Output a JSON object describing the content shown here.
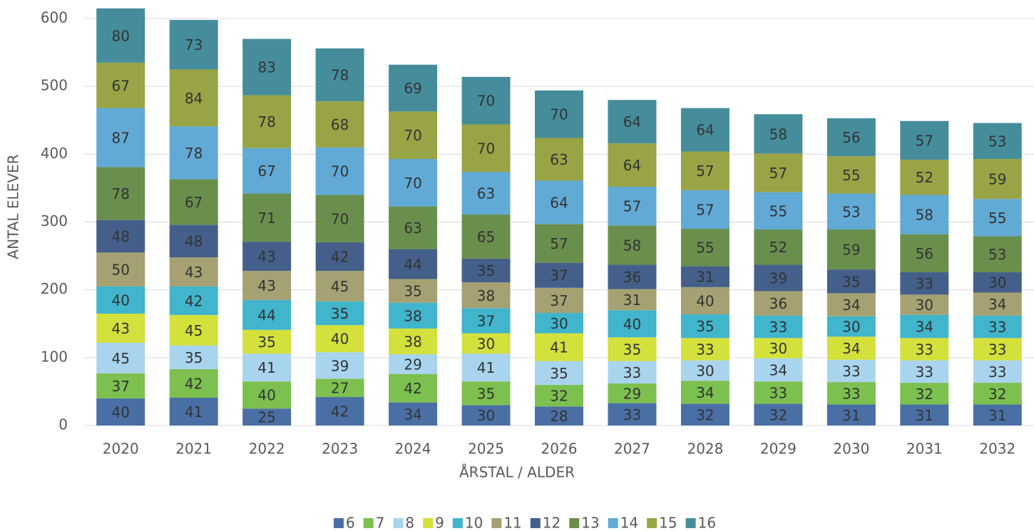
{
  "chart_data": {
    "type": "stacked_bar",
    "x_label": "ÅRSTAL / ALDER",
    "y_label": "ANTAL ELEVER",
    "categories": [
      "2020",
      "2021",
      "2022",
      "2023",
      "2024",
      "2025",
      "2026",
      "2027",
      "2028",
      "2029",
      "2030",
      "2031",
      "2032"
    ],
    "series": [
      {
        "name": "6",
        "color": "#4a6fa5",
        "values": [
          40,
          41,
          25,
          42,
          34,
          30,
          28,
          33,
          32,
          32,
          31,
          31,
          31
        ]
      },
      {
        "name": "7",
        "color": "#7cc04f",
        "values": [
          37,
          42,
          40,
          27,
          42,
          35,
          32,
          29,
          34,
          33,
          33,
          32,
          32
        ]
      },
      {
        "name": "8",
        "color": "#a9d4ee",
        "values": [
          45,
          35,
          41,
          39,
          29,
          41,
          35,
          33,
          30,
          34,
          33,
          33,
          33
        ]
      },
      {
        "name": "9",
        "color": "#d4e03c",
        "values": [
          43,
          45,
          35,
          40,
          38,
          30,
          41,
          35,
          33,
          30,
          34,
          33,
          33
        ]
      },
      {
        "name": "10",
        "color": "#40b5cc",
        "values": [
          40,
          42,
          44,
          35,
          38,
          37,
          30,
          40,
          35,
          33,
          30,
          34,
          33
        ]
      },
      {
        "name": "11",
        "color": "#a6a173",
        "values": [
          50,
          43,
          43,
          45,
          35,
          38,
          37,
          31,
          40,
          36,
          34,
          30,
          34
        ]
      },
      {
        "name": "12",
        "color": "#44608a",
        "values": [
          48,
          48,
          43,
          42,
          44,
          35,
          37,
          36,
          31,
          39,
          35,
          33,
          30
        ]
      },
      {
        "name": "13",
        "color": "#6a8f4d",
        "values": [
          78,
          67,
          71,
          70,
          63,
          65,
          57,
          58,
          55,
          52,
          59,
          56,
          53
        ]
      },
      {
        "name": "14",
        "color": "#62aad6",
        "values": [
          87,
          78,
          67,
          70,
          70,
          63,
          64,
          57,
          57,
          55,
          53,
          58,
          55
        ]
      },
      {
        "name": "15",
        "color": "#98a445",
        "values": [
          67,
          84,
          78,
          68,
          70,
          70,
          63,
          64,
          57,
          57,
          55,
          52,
          59
        ]
      },
      {
        "name": "16",
        "color": "#468d9c",
        "values": [
          80,
          73,
          83,
          78,
          69,
          70,
          70,
          64,
          64,
          58,
          56,
          57,
          53
        ]
      }
    ],
    "ylim": [
      0,
      620
    ],
    "yticks": [
      0,
      100,
      200,
      300,
      400,
      500,
      600
    ],
    "grid": true,
    "legend": "bottom"
  }
}
